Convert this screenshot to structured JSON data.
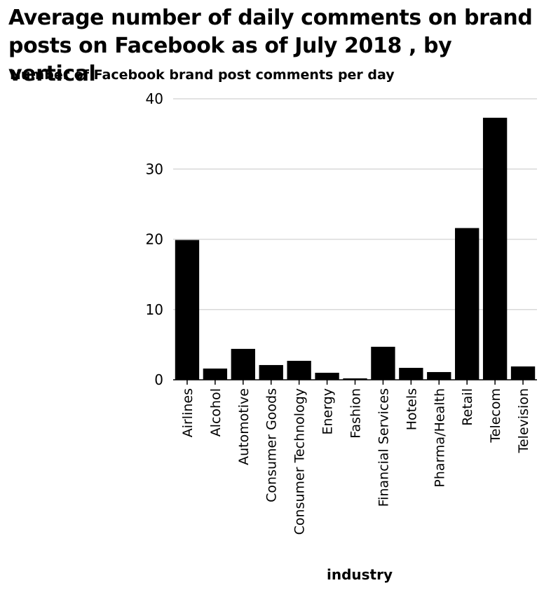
{
  "chart_data": {
    "type": "bar",
    "title": "Average number of daily comments on brand posts on Facebook as of July 2018 , by vertical",
    "xlabel": "industry",
    "ylabel": "Number of Facebook brand post comments per day",
    "ylim": [
      0,
      40
    ],
    "yticks": [
      "0",
      "10",
      "20",
      "30",
      "40"
    ],
    "grid": true,
    "categories": [
      "Airlines",
      "Alcohol",
      "Automotive",
      "Consumer Goods",
      "Consumer Technology",
      "Energy",
      "Fashion",
      "Financial Services",
      "Hotels",
      "Pharma/Health",
      "Retail",
      "Telecom",
      "Television"
    ],
    "values": [
      19.9,
      1.6,
      4.4,
      2.1,
      2.7,
      1.0,
      0.2,
      4.7,
      1.7,
      1.1,
      21.6,
      37.3,
      1.9
    ],
    "bar_color": "#000000",
    "grid_color": "#d9d9d9"
  }
}
